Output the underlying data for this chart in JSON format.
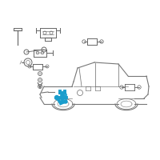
{
  "bg_color": "#ffffff",
  "car_color": "#777777",
  "car_lw": 0.8,
  "highlight_color": "#1a9dcc",
  "part_color": "#666666",
  "part_lw": 0.7,
  "figsize": [
    2.0,
    2.0
  ],
  "dpi": 100
}
